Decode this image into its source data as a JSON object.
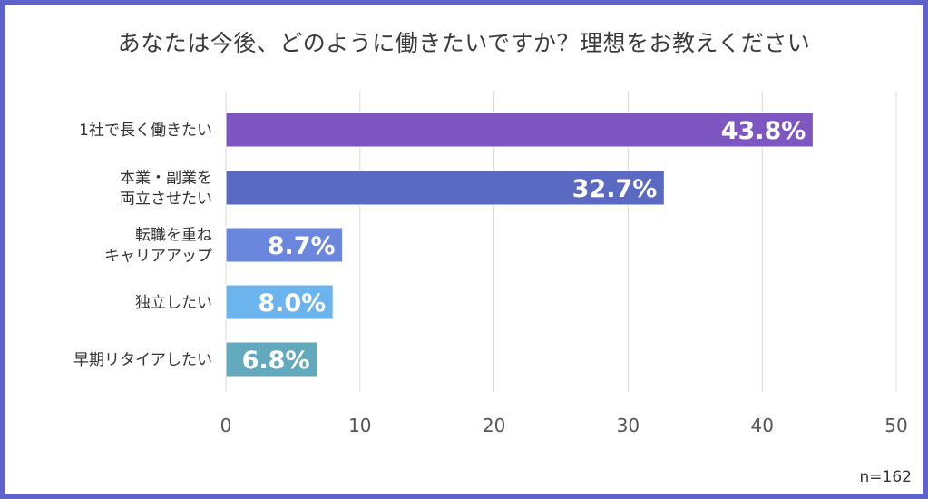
{
  "title": "あなたは今後、どのように働きたいですか？理想をお教えください",
  "note": "n=162",
  "chart_data": {
    "type": "bar",
    "orientation": "horizontal",
    "categories": [
      [
        "1社で長く働きたい"
      ],
      [
        "本業・副業を",
        "両立させたい"
      ],
      [
        "転職を重ね",
        "キャリアアップ"
      ],
      [
        "独立したい"
      ],
      [
        "早期リタイアしたい"
      ]
    ],
    "values": [
      43.8,
      32.7,
      8.7,
      8.0,
      6.8
    ],
    "value_labels": [
      "43.8%",
      "32.7%",
      "8.7%",
      "8.0%",
      "6.8%"
    ],
    "colors": [
      "#7e56c2",
      "#5a69c2",
      "#6b86dd",
      "#6cb4ee",
      "#62a9bd"
    ],
    "xlim": [
      0,
      50
    ],
    "xticks": [
      "0",
      "10",
      "20",
      "30",
      "40",
      "50"
    ],
    "grid": true
  }
}
